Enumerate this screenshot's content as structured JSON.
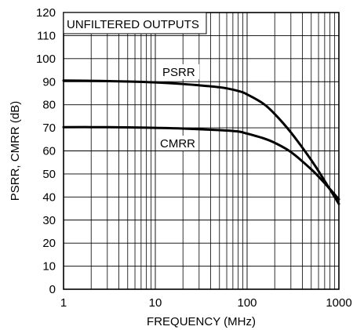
{
  "chart_data": {
    "type": "line",
    "x_scale": "log",
    "xlim": [
      1,
      1000
    ],
    "ylim": [
      0,
      120
    ],
    "xlabel": "FREQUENCY (MHz)",
    "ylabel": "PSRR, CMRR (dB)",
    "grid": true,
    "annotation": "UNFILTERED OUTPUTS",
    "x_ticks": [
      1,
      10,
      100,
      1000
    ],
    "x_tick_labels": [
      "1",
      "10",
      "100",
      "1000"
    ],
    "y_ticks": [
      0,
      10,
      20,
      30,
      40,
      50,
      60,
      70,
      80,
      90,
      100,
      110,
      120
    ],
    "y_tick_labels": [
      "0",
      "10",
      "20",
      "30",
      "40",
      "50",
      "60",
      "70",
      "80",
      "90",
      "100",
      "110",
      "120"
    ],
    "series": [
      {
        "name": "PSRR",
        "x": [
          1,
          2,
          5,
          10,
          20,
          50,
          80,
          100,
          150,
          200,
          300,
          500,
          700,
          1000
        ],
        "y": [
          90.5,
          90.4,
          90.1,
          89.7,
          89,
          87.6,
          86,
          84.5,
          80.5,
          76,
          68,
          56,
          47,
          37
        ]
      },
      {
        "name": "CMRR",
        "x": [
          1,
          2,
          5,
          10,
          20,
          50,
          80,
          100,
          150,
          200,
          300,
          500,
          700,
          1000
        ],
        "y": [
          70.3,
          70.3,
          70.2,
          70,
          69.7,
          69,
          68.4,
          67.5,
          65.5,
          63.5,
          59.5,
          52,
          46,
          39
        ]
      }
    ]
  }
}
